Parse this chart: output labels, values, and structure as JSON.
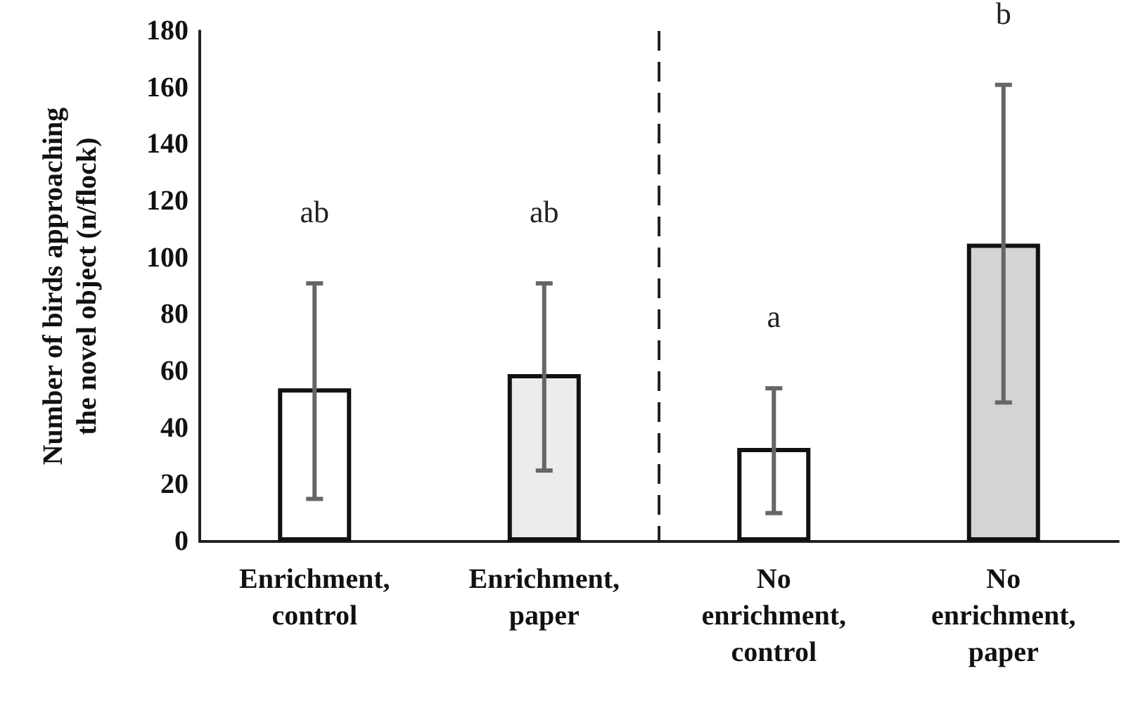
{
  "chart_data": {
    "type": "bar",
    "ylabel": "Number of birds approaching\nthe novel object (n/flock)",
    "categories": [
      "Enrichment,\ncontrol",
      "Enrichment,\npaper",
      "No\nenrichment,\ncontrol",
      "No\nenrichment,\npaper"
    ],
    "values": [
      54,
      59,
      33,
      105
    ],
    "colors": [
      "#ffffff",
      "#ececec",
      "#ffffff",
      "#d4d4d4"
    ],
    "errors": [
      [
        15,
        91
      ],
      [
        25,
        91
      ],
      [
        10,
        54
      ],
      [
        49,
        161
      ]
    ],
    "ylim": [
      0,
      180
    ],
    "yticks": [
      0,
      20,
      40,
      60,
      80,
      100,
      120,
      140,
      160,
      180
    ],
    "annotations": [
      "ab",
      "ab",
      "a",
      "b"
    ]
  }
}
